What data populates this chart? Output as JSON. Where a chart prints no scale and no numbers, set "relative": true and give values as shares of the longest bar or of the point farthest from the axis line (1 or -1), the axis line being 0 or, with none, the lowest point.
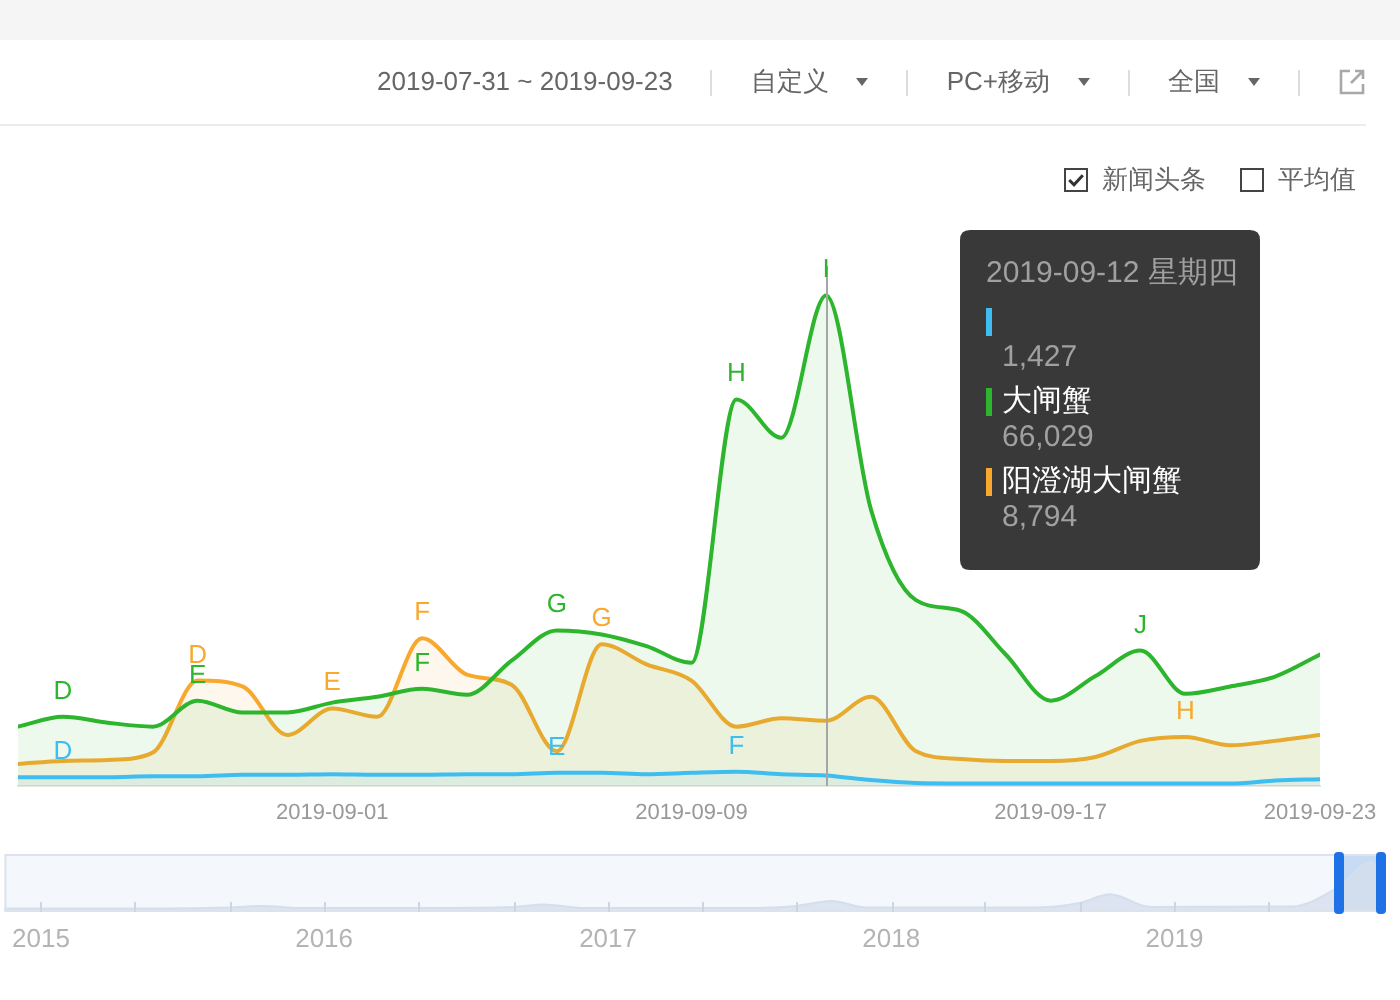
{
  "chart_data": [
    {
      "type": "area",
      "relative": true,
      "x": [
        "2019-08-25",
        "2019-08-26",
        "2019-08-27",
        "2019-08-28",
        "2019-08-29",
        "2019-08-30",
        "2019-08-31",
        "2019-09-01",
        "2019-09-02",
        "2019-09-03",
        "2019-09-04",
        "2019-09-05",
        "2019-09-06",
        "2019-09-07",
        "2019-09-08",
        "2019-09-09",
        "2019-09-10",
        "2019-09-11",
        "2019-09-12",
        "2019-09-13",
        "2019-09-14",
        "2019-09-15",
        "2019-09-16",
        "2019-09-17",
        "2019-09-18",
        "2019-09-19",
        "2019-09-20",
        "2019-09-21",
        "2019-09-22",
        "2019-09-23"
      ],
      "series": [
        {
          "color": "#3ebdf0",
          "values": [
            0.018,
            0.018,
            0.018,
            0.02,
            0.02,
            0.023,
            0.023,
            0.024,
            0.023,
            0.023,
            0.024,
            0.024,
            0.027,
            0.027,
            0.024,
            0.027,
            0.029,
            0.024,
            0.0216,
            0.012,
            0.006,
            0.005,
            0.005,
            0.005,
            0.005,
            0.005,
            0.005,
            0.005,
            0.011,
            0.014
          ]
        },
        {
          "name": "大闸蟹",
          "color": "#2db52d",
          "values": [
            0.121,
            0.141,
            0.129,
            0.121,
            0.174,
            0.15,
            0.15,
            0.17,
            0.182,
            0.198,
            0.186,
            0.256,
            0.317,
            0.309,
            0.285,
            0.251,
            0.788,
            0.71,
            1,
            0.563,
            0.379,
            0.357,
            0.268,
            0.174,
            0.224,
            0.276,
            0.188,
            0.203,
            0.223,
            0.268
          ]
        },
        {
          "name": "阳澄湖大闸蟹",
          "color": "#f9a82e",
          "values": [
            0.045,
            0.051,
            0.053,
            0.068,
            0.215,
            0.203,
            0.104,
            0.158,
            0.141,
            0.301,
            0.227,
            0.206,
            0.071,
            0.289,
            0.248,
            0.215,
            0.121,
            0.138,
            0.1332,
            0.182,
            0.071,
            0.055,
            0.051,
            0.051,
            0.059,
            0.092,
            0.1,
            0.083,
            0.092,
            0.104
          ]
        }
      ],
      "xlim": [
        "2019-08-25",
        "2019-09-23"
      ],
      "xticks": [
        "2019-09-01",
        "2019-09-09",
        "2019-09-17",
        "2019-09-23"
      ],
      "tick_labels": "x",
      "legend": "top right",
      "legend_title": "2019-09-12 星期四",
      "ref_lines": [
        {
          "axis": "x",
          "value": "2019-09-12",
          "color": "#a6a6a6"
        }
      ],
      "annotations": [
        "2019-07-31 ~ 2019-09-23",
        "自定义",
        "PC+移动",
        "全国",
        "新闻头条",
        "平均值",
        "1,427",
        "66,029",
        "8,794",
        {
          "text": "D",
          "x": "2019-08-26",
          "y": 0.141
        },
        {
          "text": "D",
          "x": "2019-08-26",
          "y": 0.018
        },
        {
          "text": "E",
          "x": "2019-08-29",
          "y": 0.174
        },
        {
          "text": "D",
          "x": "2019-08-29",
          "y": 0.215
        },
        {
          "text": "E",
          "x": "2019-09-01",
          "y": 0.158
        },
        {
          "text": "F",
          "x": "2019-09-03",
          "y": 0.198
        },
        {
          "text": "F",
          "x": "2019-09-03",
          "y": 0.301
        },
        {
          "text": "G",
          "x": "2019-09-06",
          "y": 0.317
        },
        {
          "text": "E",
          "x": "2019-09-06",
          "y": 0.027
        },
        {
          "text": "G",
          "x": "2019-09-07",
          "y": 0.289
        },
        {
          "text": "H",
          "x": "2019-09-10",
          "y": 0.788
        },
        {
          "text": "F",
          "x": "2019-09-10",
          "y": 0.029
        },
        {
          "text": "I",
          "x": "2019-09-12",
          "y": 1
        },
        {
          "text": "J",
          "x": "2019-09-19",
          "y": 0.276
        },
        {
          "text": "H",
          "x": "2019-09-20",
          "y": 0.1
        }
      ]
    },
    {
      "type": "area",
      "relative": true,
      "x": [
        "2014-11-15",
        "2015-06",
        "2015-09",
        "2015-10-15",
        "2015-12",
        "2016-06",
        "2016-09",
        "2016-10-10",
        "2016-12",
        "2017-07",
        "2017-09",
        "2017-10-15",
        "2017-12",
        "2018-07",
        "2018-09",
        "2018-10-10",
        "2018-12",
        "2019-06",
        "2019-08",
        "2019-09-12",
        "2019-09-23"
      ],
      "series": [
        {
          "color": "#d5dfec",
          "values": [
            0.07,
            0.07,
            0.09,
            0.12,
            0.08,
            0.08,
            0.1,
            0.15,
            0.08,
            0.08,
            0.12,
            0.22,
            0.09,
            0.09,
            0.18,
            0.35,
            0.1,
            0.11,
            0.5,
            1,
            0.75
          ]
        }
      ],
      "xlim": [
        "2014-11-15",
        "2019-09-23"
      ],
      "xticks": [
        "2015",
        {
          "value": "2015-05",
          "label": null
        },
        {
          "value": "2015-09",
          "label": null
        },
        "2016",
        {
          "value": "2016-05",
          "label": null
        },
        {
          "value": "2016-09",
          "label": null
        },
        "2017",
        {
          "value": "2017-05",
          "label": null
        },
        {
          "value": "2017-09",
          "label": null
        },
        "2018",
        {
          "value": "2018-05",
          "label": null
        },
        {
          "value": "2018-09",
          "label": null
        },
        "2019",
        {
          "value": "2019-05",
          "label": null
        }
      ],
      "tick_labels": "x",
      "bands": [
        {
          "axis": "x",
          "from": "2019-07-31",
          "to": "2019-09-23",
          "color": "#c7dbf5"
        }
      ]
    }
  ]
}
